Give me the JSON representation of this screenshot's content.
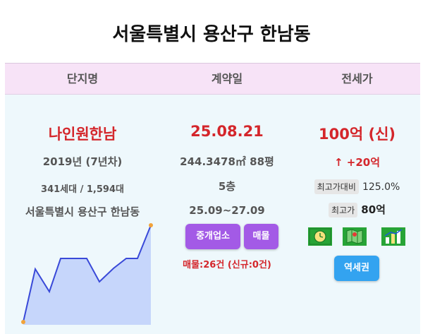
{
  "page": {
    "title": "서울특별시 용산구 한남동"
  },
  "header": {
    "col_name": "단지명",
    "col_date": "계약일",
    "col_price": "전세가"
  },
  "complex": {
    "name": "나인원한남",
    "built": "2019년 (7년차)",
    "units": "341세대 / 1,594대",
    "address": "서울특별시 용산구 한남동"
  },
  "contract": {
    "date": "25.08.21",
    "area": "244.3478㎡ 88평",
    "floor": "5층",
    "period": "25.09~27.09",
    "agent_button": "중개업소",
    "listing_button": "매물",
    "listing_count": "매물:26건 (신규:0건)"
  },
  "price": {
    "value": "100억 (신)",
    "change": "↑ +20억",
    "high_ratio_label": "최고가대비",
    "high_ratio_value": "125.0%",
    "high_label": "최고가",
    "high_value": "80억",
    "station_button": "역세권"
  },
  "icons": [
    "clock-icon",
    "map-icon",
    "chart-icon"
  ],
  "colors": {
    "header_bg": "#f7e3f7",
    "body_bg": "#eef8fc",
    "accent_red": "#d4262b",
    "purple_button": "#a35ae6",
    "blue_button": "#33a3f0"
  }
}
